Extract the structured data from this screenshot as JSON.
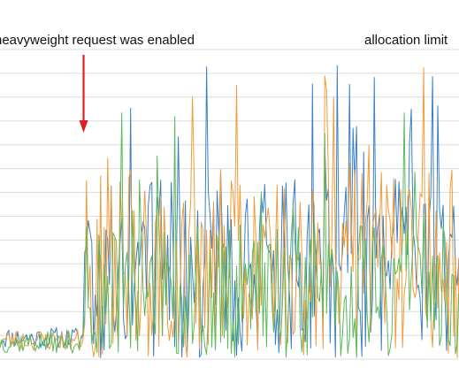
{
  "chart_data": {
    "type": "line",
    "title": "",
    "xlabel": "",
    "ylabel": "",
    "grid": true,
    "colors": {
      "blue": "#3b7fc4",
      "orange": "#f29b38",
      "green": "#5cb85c",
      "arrow": "#e02020",
      "grid": "#dcdcdc"
    },
    "annotations": [
      {
        "id": "enabled",
        "text": "heavyweight request was enabled",
        "arrow": true,
        "at_fraction": 0.185
      },
      {
        "id": "limit",
        "text": "allocation limit",
        "arrow": false,
        "at_fraction": 0.8
      }
    ],
    "x_fraction_of_event": 0.185,
    "ylim": [
      0,
      13
    ],
    "gridlines": 13,
    "series": [
      {
        "color_key": "blue",
        "baseline_before": 0.9,
        "mean_after": 3.6,
        "spread_after": 7.2,
        "spike_max": 12.7,
        "seed": 11
      },
      {
        "color_key": "orange",
        "baseline_before": 0.8,
        "mean_after": 3.8,
        "spread_after": 7.6,
        "spike_max": 12.3,
        "seed": 23
      },
      {
        "color_key": "green",
        "baseline_before": 0.7,
        "mean_after": 2.6,
        "spread_after": 5.6,
        "spike_max": 10.4,
        "seed": 37
      }
    ]
  }
}
